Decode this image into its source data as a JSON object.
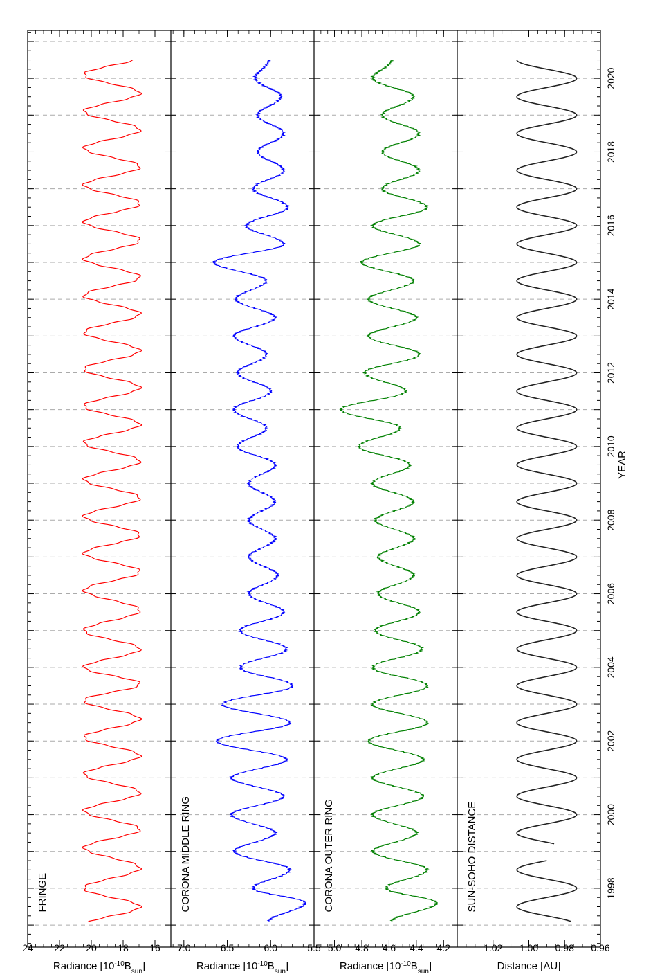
{
  "chart_data": {
    "type": "line",
    "xlabel": "YEAR",
    "xlim": [
      1996.4,
      2021.3
    ],
    "xticks": [
      1998,
      2000,
      2002,
      2004,
      2006,
      2008,
      2010,
      2012,
      2014,
      2016,
      2018,
      2020
    ],
    "xtick_labels": [
      "1998",
      "2000",
      "2002",
      "2004",
      "2006",
      "2008",
      "2010",
      "2012",
      "2014",
      "2016",
      "2018",
      "2020"
    ],
    "grid_x": "dashed at each year",
    "orientation": "rotated 90 degrees counter-clockwise",
    "panels": [
      {
        "key": "fringe",
        "label": "FRINGE",
        "color": "#ff0000",
        "ylim": [
          15,
          24
        ],
        "yticks": [
          16,
          18,
          20,
          22,
          24
        ],
        "ylabel_main": "Radiance [10",
        "ylabel_sup": "-10",
        "ylabel_mid": "B",
        "ylabel_sub": "sun",
        "ylabel_end": "]",
        "series": {
          "start": 1997.1,
          "end": 2020.5,
          "mean": 18.7,
          "amplitude": 1.75,
          "peaks": [
            1998.0,
            1999.1,
            2000.1,
            2001.1,
            2002.1,
            2003.1,
            2004.0,
            2005.0,
            2006.1,
            2007.1,
            2008.1,
            2009.1,
            2010.1,
            2011.1,
            2012.1,
            2013.1,
            2014.1,
            2015.1,
            2016.1,
            2017.1,
            2018.1,
            2019.1,
            2020.1
          ]
        }
      },
      {
        "key": "middle",
        "label": "CORONA MIDDLE RING",
        "color": "#0000ff",
        "ylim": [
          5.5,
          7.15
        ],
        "yticks": [
          5.5,
          6.0,
          6.5,
          7.0
        ],
        "ylabel_main": "Radiance [10",
        "ylabel_sup": "-10",
        "ylabel_mid": "B",
        "ylabel_sub": "sun",
        "ylabel_end": "]",
        "series": {
          "start": 1997.1,
          "end": 2020.5,
          "points": [
            [
              1997.1,
              6.02
            ],
            [
              1997.6,
              5.6
            ],
            [
              1998.0,
              6.2
            ],
            [
              1998.5,
              5.78
            ],
            [
              1999.0,
              6.42
            ],
            [
              1999.5,
              5.95
            ],
            [
              2000.0,
              6.45
            ],
            [
              2000.5,
              5.85
            ],
            [
              2001.0,
              6.45
            ],
            [
              2001.5,
              5.82
            ],
            [
              2002.0,
              6.62
            ],
            [
              2002.5,
              5.78
            ],
            [
              2003.0,
              6.55
            ],
            [
              2003.5,
              5.75
            ],
            [
              2004.0,
              6.35
            ],
            [
              2004.5,
              5.82
            ],
            [
              2005.0,
              6.35
            ],
            [
              2005.5,
              5.85
            ],
            [
              2006.0,
              6.25
            ],
            [
              2006.5,
              5.92
            ],
            [
              2007.0,
              6.25
            ],
            [
              2007.5,
              5.95
            ],
            [
              2008.0,
              6.25
            ],
            [
              2008.5,
              5.95
            ],
            [
              2009.0,
              6.25
            ],
            [
              2009.5,
              5.95
            ],
            [
              2010.0,
              6.38
            ],
            [
              2010.5,
              6.05
            ],
            [
              2011.0,
              6.42
            ],
            [
              2011.5,
              6.0
            ],
            [
              2012.0,
              6.38
            ],
            [
              2012.5,
              6.05
            ],
            [
              2013.0,
              6.42
            ],
            [
              2013.5,
              5.95
            ],
            [
              2014.0,
              6.4
            ],
            [
              2014.5,
              6.05
            ],
            [
              2015.0,
              6.65
            ],
            [
              2015.5,
              5.85
            ],
            [
              2016.0,
              6.28
            ],
            [
              2016.5,
              5.8
            ],
            [
              2017.0,
              6.2
            ],
            [
              2017.5,
              5.85
            ],
            [
              2018.0,
              6.15
            ],
            [
              2018.5,
              5.85
            ],
            [
              2019.0,
              6.15
            ],
            [
              2019.5,
              5.88
            ],
            [
              2020.0,
              6.18
            ],
            [
              2020.5,
              6.02
            ]
          ]
        }
      },
      {
        "key": "outer",
        "label": "CORONA OUTER RING",
        "color": "#008000",
        "ylim": [
          4.1,
          5.15
        ],
        "yticks": [
          4.2,
          4.4,
          4.6,
          4.8,
          5.0
        ],
        "ylabel_main": "Radiance [10",
        "ylabel_sup": "-10",
        "ylabel_mid": "B",
        "ylabel_sub": "sun",
        "ylabel_end": "]",
        "series": {
          "start": 1997.1,
          "end": 2020.5,
          "points": [
            [
              1997.1,
              4.58
            ],
            [
              1997.6,
              4.25
            ],
            [
              1998.0,
              4.62
            ],
            [
              1998.5,
              4.32
            ],
            [
              1999.0,
              4.72
            ],
            [
              1999.5,
              4.4
            ],
            [
              2000.0,
              4.72
            ],
            [
              2000.5,
              4.35
            ],
            [
              2001.0,
              4.72
            ],
            [
              2001.5,
              4.35
            ],
            [
              2002.0,
              4.75
            ],
            [
              2002.5,
              4.32
            ],
            [
              2003.0,
              4.72
            ],
            [
              2003.5,
              4.32
            ],
            [
              2004.0,
              4.72
            ],
            [
              2004.5,
              4.36
            ],
            [
              2005.0,
              4.7
            ],
            [
              2005.5,
              4.38
            ],
            [
              2006.0,
              4.68
            ],
            [
              2006.5,
              4.42
            ],
            [
              2007.0,
              4.68
            ],
            [
              2007.5,
              4.42
            ],
            [
              2008.0,
              4.7
            ],
            [
              2008.5,
              4.42
            ],
            [
              2009.0,
              4.72
            ],
            [
              2009.5,
              4.45
            ],
            [
              2010.0,
              4.82
            ],
            [
              2010.5,
              4.52
            ],
            [
              2011.0,
              4.95
            ],
            [
              2011.5,
              4.48
            ],
            [
              2012.0,
              4.78
            ],
            [
              2012.5,
              4.38
            ],
            [
              2013.0,
              4.75
            ],
            [
              2013.5,
              4.4
            ],
            [
              2014.0,
              4.75
            ],
            [
              2014.5,
              4.42
            ],
            [
              2015.0,
              4.8
            ],
            [
              2015.5,
              4.38
            ],
            [
              2016.0,
              4.72
            ],
            [
              2016.5,
              4.32
            ],
            [
              2017.0,
              4.65
            ],
            [
              2017.5,
              4.38
            ],
            [
              2018.0,
              4.65
            ],
            [
              2018.5,
              4.38
            ],
            [
              2019.0,
              4.65
            ],
            [
              2019.5,
              4.42
            ],
            [
              2020.0,
              4.72
            ],
            [
              2020.5,
              4.58
            ]
          ]
        }
      },
      {
        "key": "distance",
        "label": "SUN-SOHO DISTANCE",
        "color": "#222222",
        "ylim": [
          0.96,
          1.04
        ],
        "yticks": [
          0.96,
          0.98,
          1.0,
          1.02
        ],
        "ylabel_main": "Distance [AU]",
        "ylabel_sup": "",
        "ylabel_mid": "",
        "ylabel_sub": "",
        "ylabel_end": "",
        "series": {
          "start": 1997.1,
          "end": 2020.5,
          "mean": 0.99,
          "amplitude": 0.0167,
          "gap": [
            1998.75,
            1999.2
          ],
          "peaks": [
            1997.5,
            1998.5,
            1999.5,
            2000.5,
            2001.5,
            2002.5,
            2003.5,
            2004.5,
            2005.5,
            2006.5,
            2007.5,
            2008.5,
            2009.5,
            2010.5,
            2011.5,
            2012.5,
            2013.5,
            2014.5,
            2015.5,
            2016.5,
            2017.5,
            2018.5,
            2019.5,
            2020.5
          ]
        }
      }
    ]
  }
}
